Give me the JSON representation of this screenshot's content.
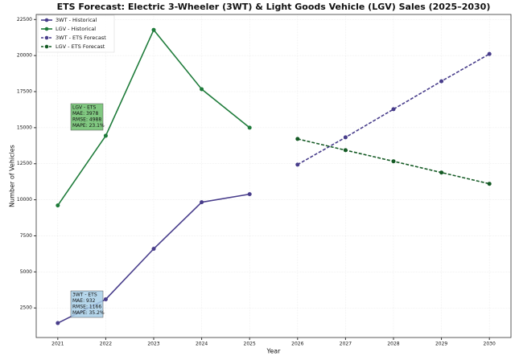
{
  "chart_data": {
    "type": "line",
    "title": "ETS Forecast: Electric 3-Wheeler (3WT) & Light Goods Vehicle (LGV) Sales (2025–2030)",
    "xlabel": "Year",
    "ylabel": "Number of Vehicles",
    "xlim": [
      2020.55,
      2030.45
    ],
    "xticks": [
      2021,
      2022,
      2023,
      2024,
      2025,
      2026,
      2027,
      2028,
      2029,
      2030
    ],
    "ylim": [
      450,
      22850
    ],
    "yticks": [
      2500,
      5000,
      7500,
      10000,
      12500,
      15000,
      17500,
      20000,
      22500
    ],
    "grid": true,
    "legend": "upper left",
    "series": [
      {
        "name": "3WT - Historical",
        "color": "#483d8b",
        "linestyle": "solid",
        "x": [
          2021,
          2022,
          2023,
          2024,
          2025
        ],
        "values": [
          1450,
          3100,
          6600,
          9830,
          10390
        ]
      },
      {
        "name": "LGV - Historical",
        "color": "#1e7b3a",
        "linestyle": "solid",
        "x": [
          2021,
          2022,
          2023,
          2024,
          2025
        ],
        "values": [
          9610,
          14440,
          21780,
          17670,
          15000
        ]
      },
      {
        "name": "3WT - ETS Forecast",
        "color": "#483d8b",
        "linestyle": "dashed",
        "x": [
          2026,
          2027,
          2028,
          2029,
          2030
        ],
        "values": [
          12440,
          14330,
          16280,
          18220,
          20110
        ]
      },
      {
        "name": "LGV - ETS Forecast",
        "color": "#145a24",
        "linestyle": "dashed",
        "x": [
          2026,
          2027,
          2028,
          2029,
          2030
        ],
        "values": [
          14220,
          13440,
          12670,
          11890,
          11110
        ]
      }
    ],
    "annotations": [
      {
        "lines": [
          "LGV - ETS",
          "MAE: 3978",
          "RMSE: 4988",
          "MAPE: 23.1%"
        ],
        "color": "#6cbf6c"
      },
      {
        "lines": [
          "3WT - ETS",
          "MAE: 932",
          "RMSE: 1166",
          "MAPE: 35.2%"
        ],
        "color": "#a9cfe8"
      }
    ]
  }
}
